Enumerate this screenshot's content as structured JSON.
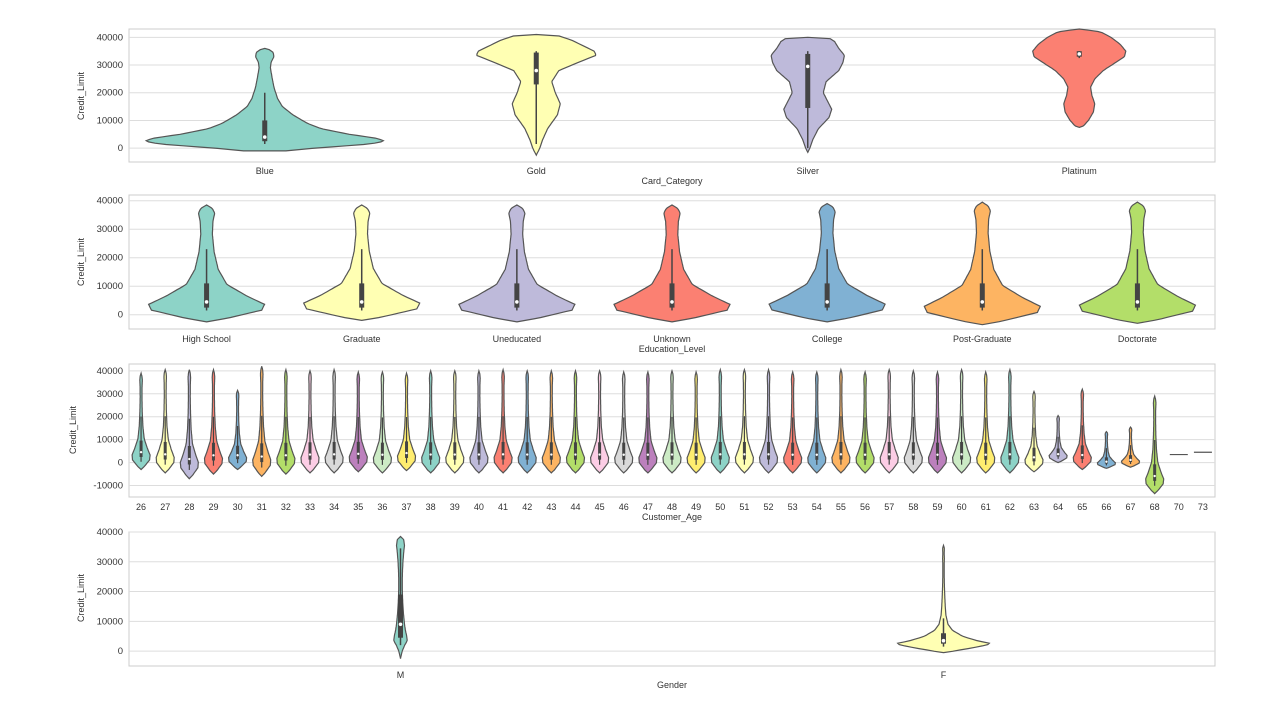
{
  "chart_data": [
    {
      "type": "violin",
      "xlabel": "Card_Category",
      "ylabel": "Credit_Limit",
      "ylim": [
        -5000,
        43000
      ],
      "yticks": [
        0,
        10000,
        20000,
        30000,
        40000
      ],
      "grid": true,
      "categories": [
        {
          "label": "Blue",
          "color": "#8dd3c7",
          "min": -1000,
          "max": 36000,
          "q1": 2500,
          "median": 4000,
          "q3": 10000,
          "whisker_low": 1500,
          "whisker_high": 20000,
          "profile": [
            [
              -1000,
              30
            ],
            [
              0,
              70
            ],
            [
              1500,
              150
            ],
            [
              2500,
              170
            ],
            [
              3500,
              160
            ],
            [
              5000,
              120
            ],
            [
              7000,
              80
            ],
            [
              9000,
              60
            ],
            [
              12000,
              40
            ],
            [
              15000,
              25
            ],
            [
              18000,
              18
            ],
            [
              22000,
              13
            ],
            [
              26000,
              10
            ],
            [
              29000,
              8
            ],
            [
              31000,
              9
            ],
            [
              33000,
              13
            ],
            [
              34500,
              12
            ],
            [
              35500,
              7
            ],
            [
              36000,
              0
            ]
          ]
        },
        {
          "label": "Gold",
          "color": "#ffffb3",
          "min": -2500,
          "max": 41000,
          "q1": 23000,
          "median": 28000,
          "q3": 34500,
          "whisker_low": 1500,
          "whisker_high": 35000,
          "profile": [
            [
              -2500,
              0
            ],
            [
              0,
              5
            ],
            [
              3000,
              9
            ],
            [
              7000,
              16
            ],
            [
              12000,
              30
            ],
            [
              16000,
              34
            ],
            [
              20000,
              27
            ],
            [
              24000,
              22
            ],
            [
              28000,
              32
            ],
            [
              31000,
              60
            ],
            [
              33500,
              85
            ],
            [
              35000,
              82
            ],
            [
              37000,
              66
            ],
            [
              39000,
              50
            ],
            [
              40500,
              32
            ],
            [
              41000,
              0
            ]
          ]
        },
        {
          "label": "Silver",
          "color": "#bebada",
          "min": -1500,
          "max": 40000,
          "q1": 14500,
          "median": 29500,
          "q3": 34000,
          "whisker_low": 0,
          "whisker_high": 35000,
          "profile": [
            [
              -1500,
              0
            ],
            [
              0,
              3
            ],
            [
              3000,
              7
            ],
            [
              7000,
              15
            ],
            [
              11000,
              30
            ],
            [
              14000,
              34
            ],
            [
              17000,
              28
            ],
            [
              20000,
              22
            ],
            [
              24000,
              26
            ],
            [
              28000,
              44
            ],
            [
              31000,
              50
            ],
            [
              33500,
              52
            ],
            [
              36000,
              44
            ],
            [
              38500,
              38
            ],
            [
              39800,
              30
            ],
            [
              40000,
              0
            ]
          ]
        },
        {
          "label": "Platinum",
          "color": "#fb8072",
          "min": 7500,
          "max": 43000,
          "q1": 33000,
          "median": 34000,
          "q3": 35000,
          "whisker_low": 32500,
          "whisker_high": 35000,
          "profile": [
            [
              7500,
              0
            ],
            [
              8000,
              6
            ],
            [
              10000,
              13
            ],
            [
              13000,
              20
            ],
            [
              16000,
              22
            ],
            [
              19000,
              18
            ],
            [
              22000,
              16
            ],
            [
              25000,
              22
            ],
            [
              28000,
              34
            ],
            [
              31000,
              52
            ],
            [
              33000,
              64
            ],
            [
              35000,
              66
            ],
            [
              37500,
              58
            ],
            [
              40000,
              45
            ],
            [
              42000,
              30
            ],
            [
              43000,
              0
            ]
          ]
        }
      ]
    },
    {
      "type": "violin",
      "xlabel": "Education_Level",
      "ylabel": "Credit_Limit",
      "ylim": [
        -5000,
        42000
      ],
      "yticks": [
        0,
        10000,
        20000,
        30000,
        40000
      ],
      "grid": true,
      "categories": [
        {
          "label": "High School",
          "color": "#8dd3c7",
          "min": -2500,
          "max": 38500,
          "q1": 2500,
          "median": 4500,
          "q3": 11000,
          "whisker_low": 1500,
          "whisker_high": 23000
        },
        {
          "label": "Graduate",
          "color": "#ffffb3",
          "min": -2000,
          "max": 38500,
          "q1": 2500,
          "median": 4500,
          "q3": 11000,
          "whisker_low": 1500,
          "whisker_high": 23000
        },
        {
          "label": "Uneducated",
          "color": "#bebada",
          "min": -2500,
          "max": 38500,
          "q1": 2500,
          "median": 4500,
          "q3": 11000,
          "whisker_low": 1500,
          "whisker_high": 23000
        },
        {
          "label": "Unknown",
          "color": "#fb8072",
          "min": -2500,
          "max": 38500,
          "q1": 2500,
          "median": 4500,
          "q3": 11000,
          "whisker_low": 1500,
          "whisker_high": 23000
        },
        {
          "label": "College",
          "color": "#80b1d3",
          "min": -2500,
          "max": 39000,
          "q1": 2500,
          "median": 4500,
          "q3": 11000,
          "whisker_low": 1500,
          "whisker_high": 23000
        },
        {
          "label": "Post-Graduate",
          "color": "#fdb462",
          "min": -3500,
          "max": 39500,
          "q1": 2500,
          "median": 4500,
          "q3": 11000,
          "whisker_low": 1500,
          "whisker_high": 23000
        },
        {
          "label": "Doctorate",
          "color": "#b3de69",
          "min": -3000,
          "max": 39500,
          "q1": 2500,
          "median": 4500,
          "q3": 11000,
          "whisker_low": 1500,
          "whisker_high": 23000
        }
      ]
    },
    {
      "type": "violin",
      "xlabel": "Customer_Age",
      "ylabel": "Credit_Limit",
      "ylim": [
        -15000,
        43000
      ],
      "yticks": [
        -10000,
        0,
        10000,
        20000,
        30000,
        40000
      ],
      "grid": true,
      "palette": [
        "#8dd3c7",
        "#ffffb3",
        "#bebada",
        "#fb8072",
        "#80b1d3",
        "#fdb462",
        "#b3de69",
        "#fccde5",
        "#d9d9d9",
        "#bc80bd",
        "#ccebc5",
        "#ffed6f"
      ],
      "categories": [
        {
          "label": "26",
          "min": -3000,
          "max": 39000
        },
        {
          "label": "27",
          "min": -4500,
          "max": 40500
        },
        {
          "label": "28",
          "min": -7000,
          "max": 40500
        },
        {
          "label": "29",
          "min": -5000,
          "max": 40500
        },
        {
          "label": "30",
          "min": -3000,
          "max": 31500
        },
        {
          "label": "31",
          "min": -6000,
          "max": 42000
        },
        {
          "label": "32",
          "min": -5000,
          "max": 40500
        },
        {
          "label": "33",
          "min": -4500,
          "max": 40000
        },
        {
          "label": "34",
          "min": -4500,
          "max": 40500
        },
        {
          "label": "35",
          "min": -4000,
          "max": 39500
        },
        {
          "label": "36",
          "min": -4500,
          "max": 39500
        },
        {
          "label": "37",
          "min": -3500,
          "max": 39000
        },
        {
          "label": "38",
          "min": -4500,
          "max": 40000
        },
        {
          "label": "39",
          "min": -4500,
          "max": 40000
        },
        {
          "label": "40",
          "min": -4500,
          "max": 40000
        },
        {
          "label": "41",
          "min": -4500,
          "max": 40500
        },
        {
          "label": "42",
          "min": -4500,
          "max": 40000
        },
        {
          "label": "43",
          "min": -4500,
          "max": 40000
        },
        {
          "label": "44",
          "min": -4500,
          "max": 40000
        },
        {
          "label": "45",
          "min": -4500,
          "max": 40000
        },
        {
          "label": "46",
          "min": -4500,
          "max": 39500
        },
        {
          "label": "47",
          "min": -4500,
          "max": 39500
        },
        {
          "label": "48",
          "min": -4500,
          "max": 40000
        },
        {
          "label": "49",
          "min": -4500,
          "max": 39500
        },
        {
          "label": "50",
          "min": -4500,
          "max": 40500
        },
        {
          "label": "51",
          "min": -4500,
          "max": 40500
        },
        {
          "label": "52",
          "min": -4500,
          "max": 40500
        },
        {
          "label": "53",
          "min": -4500,
          "max": 39500
        },
        {
          "label": "54",
          "min": -4500,
          "max": 39500
        },
        {
          "label": "55",
          "min": -4500,
          "max": 40500
        },
        {
          "label": "56",
          "min": -4500,
          "max": 39500
        },
        {
          "label": "57",
          "min": -4500,
          "max": 40500
        },
        {
          "label": "58",
          "min": -4500,
          "max": 40000
        },
        {
          "label": "59",
          "min": -4500,
          "max": 39500
        },
        {
          "label": "60",
          "min": -4500,
          "max": 40500
        },
        {
          "label": "61",
          "min": -4500,
          "max": 39500
        },
        {
          "label": "62",
          "min": -4500,
          "max": 40500
        },
        {
          "label": "63",
          "min": -4000,
          "max": 31000
        },
        {
          "label": "64",
          "min": 0,
          "max": 20500
        },
        {
          "label": "65",
          "min": -3000,
          "max": 32000
        },
        {
          "label": "66",
          "min": -2500,
          "max": 13500
        },
        {
          "label": "67",
          "min": -2000,
          "max": 15500
        },
        {
          "label": "68",
          "min": -13500,
          "max": 29000
        },
        {
          "label": "70",
          "value": 3500
        },
        {
          "label": "73",
          "value": 4500
        }
      ]
    },
    {
      "type": "violin",
      "xlabel": "Gender",
      "ylabel": "Credit_Limit",
      "ylim": [
        -5000,
        40000
      ],
      "yticks": [
        0,
        10000,
        20000,
        30000,
        40000
      ],
      "grid": true,
      "categories": [
        {
          "label": "M",
          "color": "#8dd3c7",
          "min": -2500,
          "max": 38500,
          "q1": 4500,
          "median": 9000,
          "q3": 19000,
          "whisker_low": 2000,
          "whisker_high": 34500,
          "profile": [
            [
              -2500,
              0
            ],
            [
              0,
              15
            ],
            [
              2000,
              38
            ],
            [
              3500,
              60
            ],
            [
              5000,
              56
            ],
            [
              7000,
              44
            ],
            [
              9000,
              36
            ],
            [
              12000,
              28
            ],
            [
              15000,
              22
            ],
            [
              18000,
              18
            ],
            [
              21000,
              16
            ],
            [
              24000,
              16
            ],
            [
              27000,
              18
            ],
            [
              30000,
              22
            ],
            [
              33000,
              28
            ],
            [
              35500,
              36
            ],
            [
              37500,
              28
            ],
            [
              38500,
              0
            ]
          ]
        },
        {
          "label": "F",
          "color": "#ffffb3",
          "min": -500,
          "max": 35500,
          "q1": 2500,
          "median": 3500,
          "q3": 6000,
          "whisker_low": 1500,
          "whisker_high": 11000,
          "profile": [
            [
              -500,
              0
            ],
            [
              0,
              90
            ],
            [
              1500,
              320
            ],
            [
              2500,
              430
            ],
            [
              3500,
              300
            ],
            [
              5000,
              170
            ],
            [
              7000,
              80
            ],
            [
              9000,
              40
            ],
            [
              12000,
              22
            ],
            [
              15000,
              16
            ],
            [
              18000,
              12
            ],
            [
              22000,
              8
            ],
            [
              26000,
              6
            ],
            [
              29000,
              6
            ],
            [
              31000,
              8
            ],
            [
              33000,
              6
            ],
            [
              34500,
              8
            ],
            [
              35500,
              0
            ]
          ]
        }
      ]
    }
  ]
}
